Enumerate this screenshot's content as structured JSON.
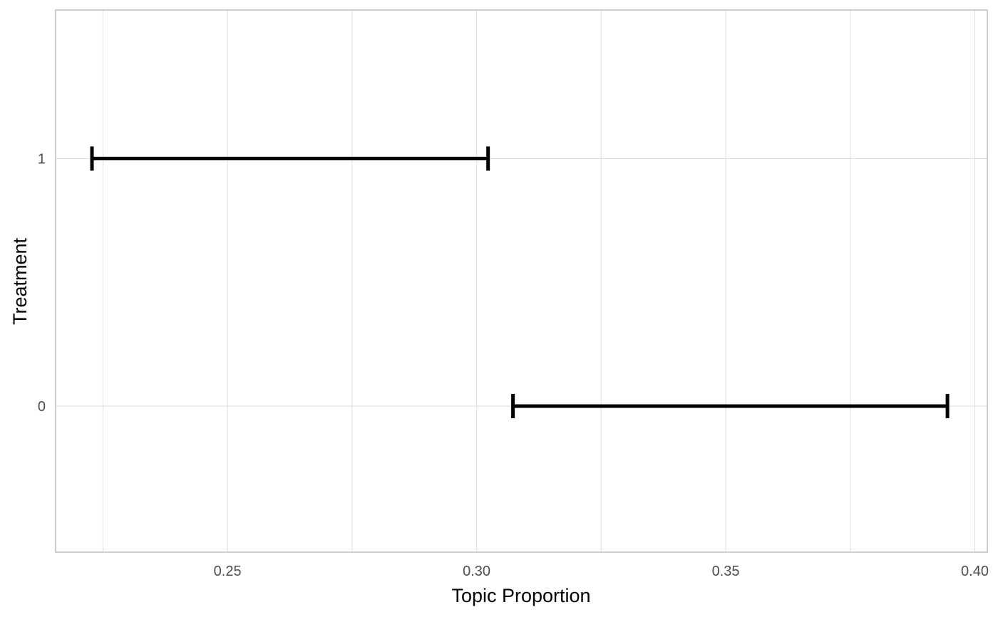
{
  "chart_data": {
    "type": "errorbar",
    "xlabel": "Topic Proportion",
    "ylabel": "Treatment",
    "xlim": [
      0.2155,
      0.4025
    ],
    "ylim": [
      -0.59,
      1.6
    ],
    "x_ticks": [
      0.25,
      0.3,
      0.35,
      0.4
    ],
    "x_tick_labels": [
      "0.25",
      "0.30",
      "0.35",
      "0.40"
    ],
    "y_ticks": [
      0,
      1
    ],
    "y_tick_labels": [
      "0",
      "1"
    ],
    "grid": true,
    "legend": "none",
    "series": [
      {
        "y": 1,
        "x_low": 0.2228,
        "x_high": 0.3023
      },
      {
        "y": 0,
        "x_low": 0.3073,
        "x_high": 0.3945
      }
    ],
    "colors": {
      "bar": "#000000",
      "grid": "#dedede",
      "panel_border": "#b3b3b3"
    }
  }
}
